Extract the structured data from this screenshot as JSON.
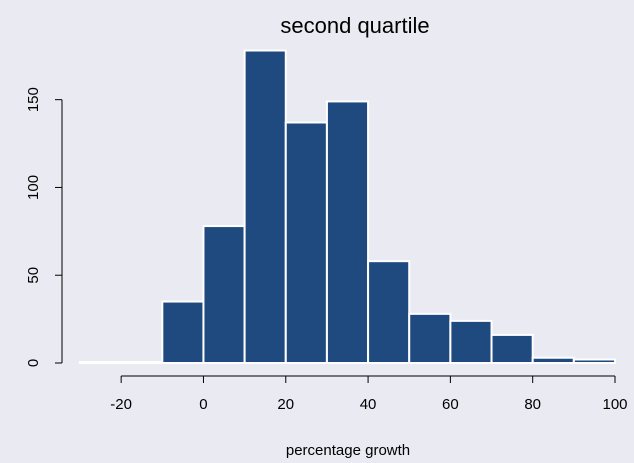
{
  "chart_data": {
    "type": "bar",
    "title": "second quartile",
    "xlabel": "percentage growth",
    "ylabel": "",
    "bin_edges": [
      -30,
      -20,
      -10,
      0,
      10,
      20,
      30,
      40,
      50,
      60,
      70,
      80,
      90,
      100
    ],
    "values": [
      0,
      0,
      35,
      78,
      178,
      137,
      149,
      58,
      28,
      24,
      16,
      3,
      2
    ],
    "xlim": [
      -30,
      100
    ],
    "ylim": [
      0,
      180
    ],
    "xticks": [
      -20,
      0,
      20,
      40,
      60,
      80,
      100
    ],
    "xtick_labels": [
      "-20",
      "0",
      "20",
      "40",
      "60",
      "80",
      "100"
    ],
    "yticks": [
      0,
      50,
      100,
      150
    ],
    "ytick_labels": [
      "0",
      "50",
      "100",
      "150"
    ],
    "grid": false,
    "legend": "none",
    "colors": {
      "bar": "#1f4a7f",
      "bar_edge": "#ffffff",
      "background": "#eaeaf2"
    }
  }
}
